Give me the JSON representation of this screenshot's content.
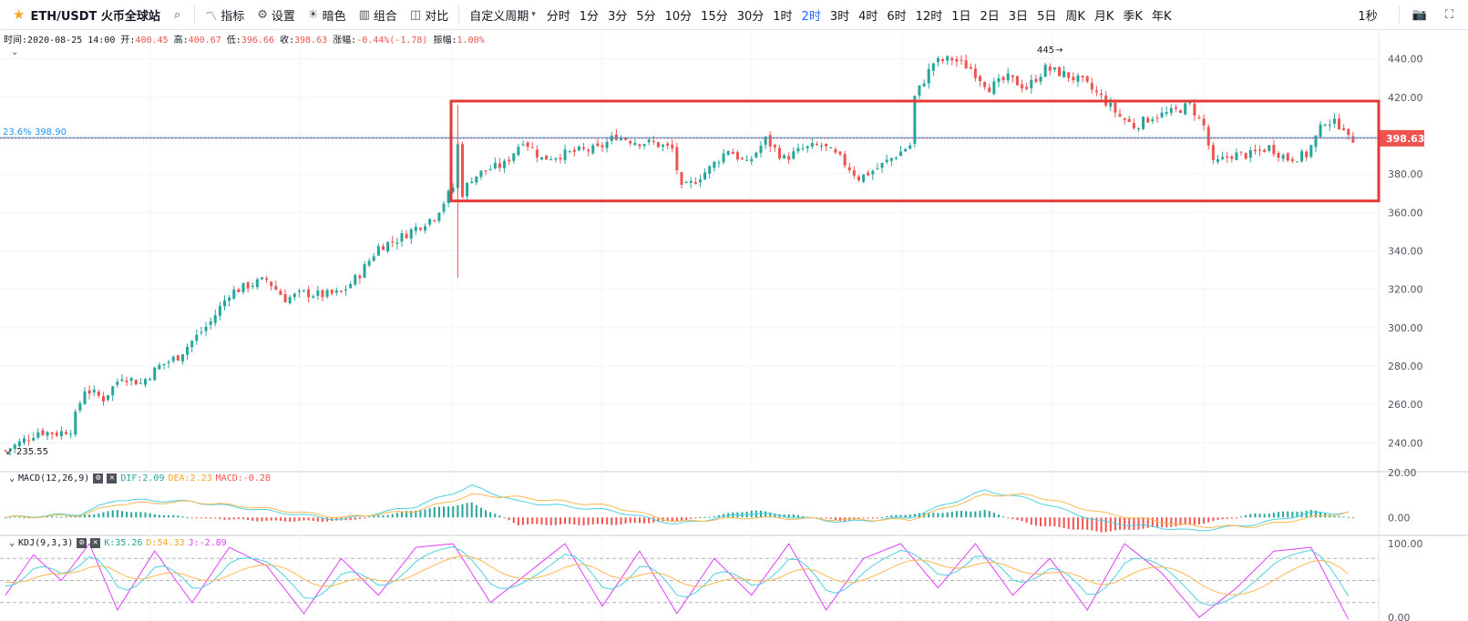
{
  "toolbar": {
    "symbol": "ETH/USDT 火币全球站",
    "indicators_label": "指标",
    "settings_label": "设置",
    "theme_label": "暗色",
    "combine_label": "组合",
    "compare_label": "对比",
    "custom_period_label": "自定义周期",
    "intervals": [
      "分时",
      "1分",
      "3分",
      "5分",
      "10分",
      "15分",
      "30分",
      "1时",
      "2时",
      "3时",
      "4时",
      "6时",
      "12时",
      "1日",
      "2日",
      "3日",
      "5日",
      "周K",
      "月K",
      "季K",
      "年K"
    ],
    "active_interval": "2时",
    "refresh_label": "1秒"
  },
  "ohlc": {
    "time_label": "时间:",
    "time": "2020-08-25 14:00",
    "open_label": "开:",
    "open": "400.45",
    "high_label": "高:",
    "high": "400.67",
    "low_label": "低:",
    "low": "396.66",
    "close_label": "收:",
    "close": "398.63",
    "change_label": "涨幅:",
    "change": "-0.44%(-1.78)",
    "amp_label": "振幅:",
    "amp": "1.00%"
  },
  "fib_label": "23.6% 398.90",
  "last_price_label": "398.63",
  "high_marker_label": "445",
  "low_marker_label": "235.55",
  "macd_legend": {
    "name": "MACD(12,26,9)",
    "dif": "DIF:2.09",
    "dea": "DEA:2.23",
    "macd": "MACD:-0.28"
  },
  "kdj_legend": {
    "name": "KDJ(9,3,3)",
    "k": "K:35.26",
    "d": "D:54.33",
    "j": "J:-2.89"
  },
  "colors": {
    "up": "#26a69a",
    "down": "#ef5350",
    "fib": "#2196f3",
    "box": "#e53935",
    "dif": "#4dd0e1",
    "dea": "#ffb74d",
    "j": "#e040fb"
  },
  "chart_data": [
    {
      "type": "candlestick",
      "ylim": [
        225,
        455
      ],
      "yticks": [
        "440.00",
        "420.00",
        "400.00",
        "380.00",
        "360.00",
        "340.00",
        "320.00",
        "300.00",
        "280.00",
        "260.00",
        "240.00"
      ],
      "ytick_values": [
        440,
        420,
        400,
        380,
        360,
        340,
        320,
        300,
        280,
        260,
        240
      ],
      "close_path": [
        [
          0,
          236
        ],
        [
          3,
          240
        ],
        [
          7,
          246
        ],
        [
          11,
          245
        ],
        [
          14,
          247
        ],
        [
          17,
          268
        ],
        [
          21,
          263
        ],
        [
          25,
          275
        ],
        [
          29,
          271
        ],
        [
          33,
          280
        ],
        [
          37,
          285
        ],
        [
          40,
          293
        ],
        [
          44,
          303
        ],
        [
          48,
          318
        ],
        [
          52,
          322
        ],
        [
          56,
          325
        ],
        [
          60,
          315
        ],
        [
          64,
          318
        ],
        [
          68,
          317
        ],
        [
          72,
          318
        ],
        [
          76,
          328
        ],
        [
          80,
          342
        ],
        [
          84,
          346
        ],
        [
          88,
          352
        ],
        [
          92,
          358
        ],
        [
          96,
          373
        ],
        [
          97,
          395
        ],
        [
          98,
          370
        ],
        [
          100,
          378
        ],
        [
          103,
          382
        ],
        [
          107,
          385
        ],
        [
          111,
          398
        ],
        [
          115,
          388
        ],
        [
          119,
          390
        ],
        [
          123,
          392
        ],
        [
          127,
          393
        ],
        [
          131,
          400
        ],
        [
          135,
          397
        ],
        [
          139,
          396
        ],
        [
          143,
          393
        ],
        [
          145,
          372
        ],
        [
          147,
          375
        ],
        [
          151,
          383
        ],
        [
          155,
          393
        ],
        [
          159,
          385
        ],
        [
          163,
          398
        ],
        [
          167,
          388
        ],
        [
          171,
          393
        ],
        [
          175,
          395
        ],
        [
          179,
          388
        ],
        [
          183,
          378
        ],
        [
          187,
          383
        ],
        [
          191,
          390
        ],
        [
          194,
          395
        ],
        [
          195,
          420
        ],
        [
          199,
          438
        ],
        [
          203,
          440
        ],
        [
          207,
          435
        ],
        [
          211,
          425
        ],
        [
          215,
          430
        ],
        [
          219,
          425
        ],
        [
          223,
          435
        ],
        [
          227,
          432
        ],
        [
          231,
          428
        ],
        [
          235,
          420
        ],
        [
          239,
          410
        ],
        [
          242,
          405
        ],
        [
          246,
          410
        ],
        [
          250,
          412
        ],
        [
          254,
          416
        ],
        [
          257,
          405
        ],
        [
          259,
          385
        ],
        [
          263,
          390
        ],
        [
          267,
          390
        ],
        [
          271,
          394
        ],
        [
          275,
          388
        ],
        [
          279,
          390
        ],
        [
          283,
          408
        ],
        [
          287,
          405
        ],
        [
          288,
          398
        ]
      ],
      "annotations": [
        "445",
        "235.55"
      ]
    },
    {
      "type": "macd",
      "ylim": [
        -8,
        20
      ],
      "yticks": [
        "20.00",
        "0.00"
      ],
      "ytick_values": [
        20,
        0
      ],
      "dif": [
        [
          0,
          0
        ],
        [
          16,
          1.5
        ],
        [
          24,
          8
        ],
        [
          40,
          7
        ],
        [
          56,
          3
        ],
        [
          72,
          -1
        ],
        [
          88,
          5
        ],
        [
          100,
          14
        ],
        [
          110,
          7
        ],
        [
          130,
          3
        ],
        [
          144,
          -3
        ],
        [
          160,
          2
        ],
        [
          180,
          -2
        ],
        [
          194,
          0
        ],
        [
          210,
          12
        ],
        [
          220,
          8
        ],
        [
          235,
          -2
        ],
        [
          255,
          -6
        ],
        [
          268,
          -3
        ],
        [
          280,
          2
        ],
        [
          288,
          2.09
        ]
      ],
      "dea": [
        [
          0,
          0
        ],
        [
          16,
          1
        ],
        [
          24,
          6
        ],
        [
          40,
          7
        ],
        [
          56,
          4
        ],
        [
          72,
          0
        ],
        [
          88,
          3
        ],
        [
          100,
          10
        ],
        [
          110,
          9
        ],
        [
          130,
          5
        ],
        [
          144,
          -2
        ],
        [
          160,
          0
        ],
        [
          180,
          -1
        ],
        [
          194,
          -1
        ],
        [
          210,
          10
        ],
        [
          220,
          10
        ],
        [
          235,
          2
        ],
        [
          255,
          -4
        ],
        [
          268,
          -4
        ],
        [
          280,
          0
        ],
        [
          288,
          2.23
        ]
      ]
    },
    {
      "type": "kdj",
      "ylim": [
        -5,
        110
      ],
      "yticks": [
        "100.00",
        "0.00"
      ],
      "ytick_values": [
        100,
        0
      ],
      "j_path": [
        [
          0,
          30
        ],
        [
          6,
          85
        ],
        [
          12,
          50
        ],
        [
          18,
          100
        ],
        [
          24,
          10
        ],
        [
          32,
          90
        ],
        [
          40,
          20
        ],
        [
          48,
          95
        ],
        [
          56,
          70
        ],
        [
          64,
          5
        ],
        [
          72,
          80
        ],
        [
          80,
          30
        ],
        [
          88,
          95
        ],
        [
          96,
          100
        ],
        [
          104,
          20
        ],
        [
          112,
          60
        ],
        [
          120,
          100
        ],
        [
          128,
          15
        ],
        [
          136,
          90
        ],
        [
          144,
          5
        ],
        [
          152,
          80
        ],
        [
          160,
          30
        ],
        [
          168,
          100
        ],
        [
          176,
          10
        ],
        [
          184,
          80
        ],
        [
          192,
          100
        ],
        [
          200,
          40
        ],
        [
          208,
          100
        ],
        [
          216,
          30
        ],
        [
          224,
          80
        ],
        [
          232,
          10
        ],
        [
          240,
          100
        ],
        [
          248,
          60
        ],
        [
          256,
          0
        ],
        [
          264,
          40
        ],
        [
          272,
          90
        ],
        [
          280,
          95
        ],
        [
          288,
          -2.89
        ]
      ]
    }
  ]
}
